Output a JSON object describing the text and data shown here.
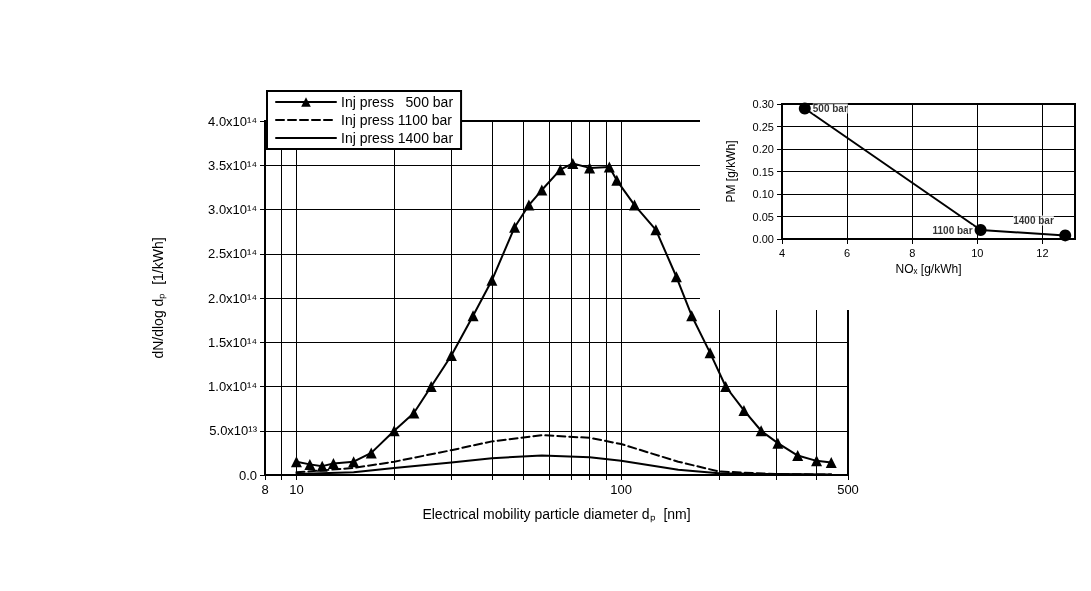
{
  "chart_data": [
    {
      "type": "line",
      "xlabel": "Electrical mobility particle diameter dₚ  [nm]",
      "ylabel": "dN/dlog dₚ  [1/kWh]",
      "log": "x",
      "grid": true,
      "legend": "top left",
      "xlim": [
        8,
        500
      ],
      "xticks": [
        8,
        {
          "value": 9,
          "label": null
        },
        10,
        {
          "value": 20,
          "label": null
        },
        {
          "value": 30,
          "label": null
        },
        {
          "value": 40,
          "label": null
        },
        {
          "value": 50,
          "label": null
        },
        {
          "value": 60,
          "label": null
        },
        {
          "value": 70,
          "label": null
        },
        {
          "value": 80,
          "label": null
        },
        {
          "value": 90,
          "label": null
        },
        100,
        {
          "value": 200,
          "label": null
        },
        {
          "value": 300,
          "label": null
        },
        {
          "value": 400,
          "label": null
        },
        500
      ],
      "ylim": [
        0,
        400000000000000.0
      ],
      "yticks": [
        {
          "value": 0,
          "label": "0.0"
        },
        {
          "value": 50000000000000.0,
          "label": "5.0x10¹³"
        },
        {
          "value": 100000000000000.0,
          "label": "1.0x10¹⁴"
        },
        {
          "value": 150000000000000.0,
          "label": "1.5x10¹⁴"
        },
        {
          "value": 200000000000000.0,
          "label": "2.0x10¹⁴"
        },
        {
          "value": 250000000000000.0,
          "label": "2.5x10¹⁴"
        },
        {
          "value": 300000000000000.0,
          "label": "3.0x10¹⁴"
        },
        {
          "value": 350000000000000.0,
          "label": "3.5x10¹⁴"
        },
        {
          "value": 400000000000000.0,
          "label": "4.0x10¹⁴"
        }
      ],
      "series": [
        {
          "name": "Inj press   500 bar",
          "color": "#000000",
          "marker": "triangle",
          "line_style": "solid",
          "x": [
            10,
            11,
            12,
            13,
            15,
            17,
            20,
            23,
            26,
            30,
            35,
            40,
            47,
            52,
            57,
            65,
            71,
            80,
            92,
            97,
            110,
            128,
            148,
            165,
            188,
            210,
            239,
            270,
            304,
            350,
            400,
            444
          ],
          "values": [
            15000000000000.0,
            12000000000000.0,
            10000000000000.0,
            13000000000000.0,
            15000000000000.0,
            25000000000000.0,
            50000000000000.0,
            70000000000000.0,
            100000000000000.0,
            135000000000000.0,
            180000000000000.0,
            220000000000000.0,
            280000000000000.0,
            305000000000000.0,
            322000000000000.0,
            345000000000000.0,
            352000000000000.0,
            347000000000000.0,
            348000000000000.0,
            333000000000000.0,
            305000000000000.0,
            277000000000000.0,
            224000000000000.0,
            180000000000000.0,
            138000000000000.0,
            100000000000000.0,
            73000000000000.0,
            50000000000000.0,
            36000000000000.0,
            22000000000000.0,
            16000000000000.0,
            14000000000000.0
          ]
        },
        {
          "name": "Inj press 1100 bar",
          "color": "#000000",
          "marker": "none",
          "line_style": "dashed",
          "x": [
            10,
            15,
            20,
            30,
            40,
            57,
            80,
            100,
            150,
            200,
            300,
            444
          ],
          "values": [
            3000000000000.0,
            8000000000000.0,
            15000000000000.0,
            28000000000000.0,
            38000000000000.0,
            45000000000000.0,
            42000000000000.0,
            35000000000000.0,
            15000000000000.0,
            4000000000000.0,
            1000000000000.0,
            500000000000.0
          ]
        },
        {
          "name": "Inj press 1400 bar",
          "color": "#000000",
          "marker": "none",
          "line_style": "solid",
          "x": [
            10,
            15,
            20,
            30,
            40,
            57,
            80,
            100,
            150,
            200,
            300,
            444
          ],
          "values": [
            1000000000000.0,
            3000000000000.0,
            8000000000000.0,
            14000000000000.0,
            19000000000000.0,
            22000000000000.0,
            20000000000000.0,
            16000000000000.0,
            6000000000000.0,
            2000000000000.0,
            1000000000000.0,
            500000000000.0
          ]
        }
      ]
    },
    {
      "type": "line",
      "xlabel": "NOₓ [g/kWh]",
      "ylabel": "PM [g/kWh]",
      "grid": true,
      "marker": "circle",
      "xlim": [
        4,
        13
      ],
      "xticks": [
        4,
        6,
        8,
        10,
        12
      ],
      "ylim": [
        0,
        0.3
      ],
      "yticks": [
        {
          "value": 0,
          "label": "0.00"
        },
        0.05,
        {
          "value": 0.1,
          "label": "0.10"
        },
        0.15,
        {
          "value": 0.2,
          "label": "0.20"
        },
        0.25,
        {
          "value": 0.3,
          "label": "0.30"
        }
      ],
      "x": [
        4.7,
        10.1,
        12.7
      ],
      "values": [
        0.29,
        0.02,
        0.008
      ],
      "color": "#000000",
      "annotations": [
        {
          "text": "500 bar",
          "x": 4.7,
          "y": 0.29
        },
        {
          "text": "1100 bar",
          "x": 10.1,
          "y": 0.02
        },
        {
          "text": "1400 bar",
          "x": 12.7,
          "y": 0.008
        }
      ]
    }
  ]
}
